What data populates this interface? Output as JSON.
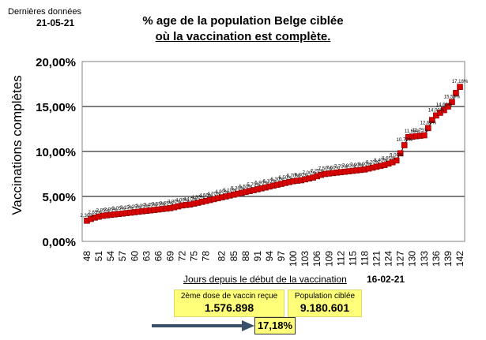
{
  "header": {
    "latest_label": "Dernières données",
    "latest_date": "21-05-21",
    "title_line1": "% age de la population Belge ciblée",
    "title_line2": "où la vaccination est complète."
  },
  "footer": {
    "start_date": "16-02-21",
    "dose_label": "2ème dose de vaccin reçue",
    "dose_value": "1.576.898",
    "pop_label": "Population ciblée",
    "pop_value": "9.180.601",
    "current_pct": "17,18%"
  },
  "colors": {
    "marker_fill": "#dd0000",
    "marker_stroke": "#770000",
    "line": "#000000",
    "highlight": "#ffff7a",
    "arrow": "#3a4f6a"
  },
  "chart_data": {
    "type": "line",
    "title": "% age de la population Belge ciblée où la vaccination est complète.",
    "xlabel": "Jours depuis le début de la vaccination",
    "ylabel": "Vaccinations complètes",
    "ylim": [
      0,
      20
    ],
    "yticks": [
      0,
      5,
      10,
      15,
      20
    ],
    "ytick_labels": [
      "0,00%",
      "5,00%",
      "10,00%",
      "15,00%",
      "20,00%"
    ],
    "xlim": [
      48,
      142
    ],
    "xticks": [
      48,
      51,
      54,
      57,
      60,
      63,
      66,
      69,
      72,
      75,
      78,
      82,
      85,
      88,
      91,
      94,
      97,
      100,
      103,
      106,
      109,
      112,
      115,
      118,
      121,
      124,
      127,
      130,
      133,
      136,
      139,
      142
    ],
    "grid": true,
    "last_point_label": "17,18%",
    "x": [
      48,
      49,
      50,
      51,
      52,
      53,
      54,
      55,
      56,
      57,
      58,
      59,
      60,
      61,
      62,
      63,
      64,
      65,
      66,
      67,
      68,
      69,
      70,
      71,
      72,
      73,
      74,
      75,
      76,
      77,
      78,
      79,
      80,
      81,
      82,
      83,
      84,
      85,
      86,
      87,
      88,
      89,
      90,
      91,
      92,
      93,
      94,
      95,
      96,
      97,
      98,
      99,
      100,
      101,
      102,
      103,
      104,
      105,
      106,
      107,
      108,
      109,
      110,
      111,
      112,
      113,
      114,
      115,
      116,
      117,
      118,
      119,
      120,
      121,
      122,
      123,
      124,
      125,
      126,
      127,
      128,
      129,
      130,
      131,
      132,
      133,
      134,
      135,
      136,
      137,
      138,
      139,
      140,
      141,
      142
    ],
    "values": [
      2.3,
      2.5,
      2.65,
      2.75,
      2.85,
      2.9,
      2.95,
      3.0,
      3.05,
      3.1,
      3.15,
      3.2,
      3.25,
      3.3,
      3.35,
      3.4,
      3.45,
      3.5,
      3.55,
      3.6,
      3.65,
      3.7,
      3.8,
      3.9,
      4.0,
      4.05,
      4.1,
      4.2,
      4.3,
      4.4,
      4.5,
      4.6,
      4.7,
      4.8,
      4.9,
      5.0,
      5.1,
      5.2,
      5.3,
      5.4,
      5.5,
      5.6,
      5.7,
      5.8,
      5.9,
      6.0,
      6.1,
      6.2,
      6.3,
      6.4,
      6.5,
      6.6,
      6.7,
      6.75,
      6.8,
      6.9,
      7.0,
      7.1,
      7.25,
      7.4,
      7.5,
      7.55,
      7.6,
      7.65,
      7.7,
      7.75,
      7.8,
      7.85,
      7.9,
      7.95,
      8.0,
      8.1,
      8.2,
      8.3,
      8.4,
      8.5,
      8.65,
      8.8,
      9.0,
      9.8,
      10.7,
      11.6,
      11.65,
      11.7,
      11.75,
      11.8,
      12.6,
      13.5,
      14.0,
      14.3,
      14.6,
      15.0,
      15.5,
      16.5,
      17.18
    ]
  }
}
